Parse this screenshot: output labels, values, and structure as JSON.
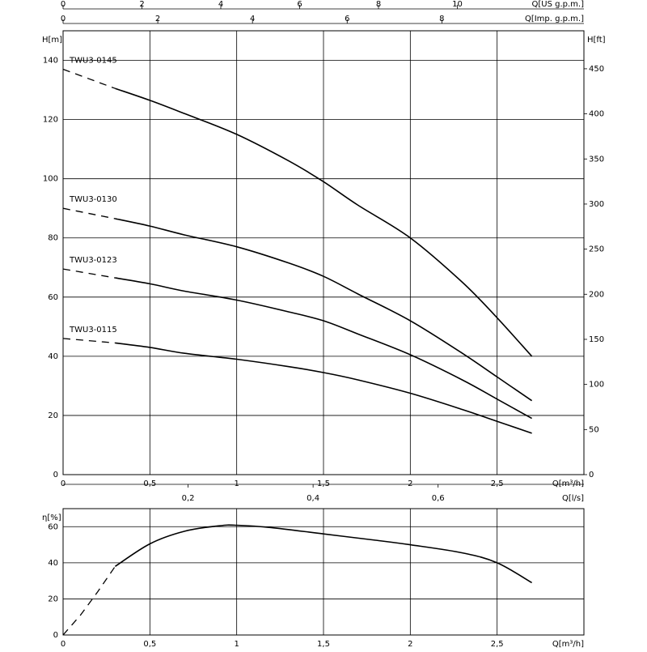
{
  "chart_data": [
    {
      "type": "line",
      "title": "",
      "xlabel": "Q[m³/h]",
      "ylabel_left": "H[m]",
      "ylabel_right": "H[ft]",
      "xlim": [
        0,
        3
      ],
      "ylim": [
        0,
        150
      ],
      "grid": true,
      "x_ticks": [
        "0",
        "0,5",
        "1",
        "1,5",
        "2",
        "2,5"
      ],
      "x_tick_values": [
        0,
        0.5,
        1,
        1.5,
        2,
        2.5
      ],
      "y_ticks_left": [
        "0",
        "20",
        "40",
        "60",
        "80",
        "100",
        "120",
        "140"
      ],
      "y_tick_values_left": [
        0,
        20,
        40,
        60,
        80,
        100,
        120,
        140
      ],
      "y_ticks_right": [
        "0",
        "50",
        "100",
        "150",
        "200",
        "250",
        "300",
        "350",
        "400",
        "450"
      ],
      "y_tick_values_right": [
        0,
        50,
        100,
        150,
        200,
        250,
        300,
        350,
        400,
        450
      ],
      "secondary_x_axes": [
        {
          "label": "Q[US g.p.m.]",
          "ticks": [
            "0",
            "2",
            "4",
            "6",
            "8",
            "10"
          ],
          "tick_values": [
            0,
            2,
            4,
            6,
            8,
            10
          ],
          "range": [
            0,
            13.21
          ]
        },
        {
          "label": "Q[Imp. g.p.m.]",
          "ticks": [
            "0",
            "2",
            "4",
            "6",
            "8"
          ],
          "tick_values": [
            0,
            2,
            4,
            6,
            8
          ],
          "range": [
            0,
            11
          ]
        },
        {
          "label": "Q[l/s]",
          "ticks": [
            "0,2",
            "0,4",
            "0,6"
          ],
          "tick_values": [
            0.2,
            0.4,
            0.6
          ],
          "range": [
            0,
            0.8333
          ]
        }
      ],
      "series": [
        {
          "name": "TWU3-0145",
          "extrapolated": [
            [
              0,
              137
            ],
            [
              0.3,
              130.5
            ]
          ],
          "values": [
            [
              0.3,
              130.5
            ],
            [
              0.5,
              126.5
            ],
            [
              0.7,
              122
            ],
            [
              1.0,
              115
            ],
            [
              1.3,
              106
            ],
            [
              1.5,
              99
            ],
            [
              1.7,
              91
            ],
            [
              2.0,
              80
            ],
            [
              2.3,
              65
            ],
            [
              2.5,
              53
            ],
            [
              2.7,
              40
            ]
          ]
        },
        {
          "name": "TWU3-0130",
          "extrapolated": [
            [
              0,
              90
            ],
            [
              0.3,
              86.5
            ]
          ],
          "values": [
            [
              0.3,
              86.5
            ],
            [
              0.5,
              84
            ],
            [
              0.7,
              81
            ],
            [
              1.0,
              77
            ],
            [
              1.3,
              71.5
            ],
            [
              1.5,
              67
            ],
            [
              1.7,
              61
            ],
            [
              2.0,
              52
            ],
            [
              2.3,
              41
            ],
            [
              2.5,
              33
            ],
            [
              2.7,
              25
            ]
          ]
        },
        {
          "name": "TWU3-0123",
          "extrapolated": [
            [
              0,
              69.5
            ],
            [
              0.3,
              66.5
            ]
          ],
          "values": [
            [
              0.3,
              66.5
            ],
            [
              0.5,
              64.5
            ],
            [
              0.7,
              62
            ],
            [
              1.0,
              59
            ],
            [
              1.3,
              55
            ],
            [
              1.5,
              52
            ],
            [
              1.7,
              47.5
            ],
            [
              2.0,
              40.5
            ],
            [
              2.3,
              32
            ],
            [
              2.5,
              25.5
            ],
            [
              2.7,
              19
            ]
          ]
        },
        {
          "name": "TWU3-0115",
          "extrapolated": [
            [
              0,
              46
            ],
            [
              0.3,
              44.5
            ]
          ],
          "values": [
            [
              0.3,
              44.5
            ],
            [
              0.5,
              43
            ],
            [
              0.7,
              41
            ],
            [
              1.0,
              39
            ],
            [
              1.3,
              36.5
            ],
            [
              1.5,
              34.5
            ],
            [
              1.7,
              32
            ],
            [
              2.0,
              27.5
            ],
            [
              2.3,
              22
            ],
            [
              2.5,
              18
            ],
            [
              2.7,
              14
            ]
          ]
        }
      ]
    },
    {
      "type": "line",
      "title": "",
      "xlabel": "Q[m³/h]",
      "ylabel": "η[%]",
      "xlim": [
        0,
        3
      ],
      "ylim": [
        0,
        70
      ],
      "grid": true,
      "x_ticks": [
        "0",
        "0,5",
        "1",
        "1,5",
        "2",
        "2,5"
      ],
      "x_tick_values": [
        0,
        0.5,
        1,
        1.5,
        2,
        2.5
      ],
      "y_ticks": [
        "0",
        "20",
        "40",
        "60"
      ],
      "y_tick_values": [
        0,
        20,
        40,
        60
      ],
      "series": [
        {
          "name": "",
          "extrapolated": [
            [
              0,
              0
            ],
            [
              0.1,
              11
            ],
            [
              0.2,
              24
            ],
            [
              0.3,
              38
            ]
          ],
          "values": [
            [
              0.3,
              38
            ],
            [
              0.5,
              50.5
            ],
            [
              0.7,
              57.5
            ],
            [
              0.9,
              60.5
            ],
            [
              1.0,
              60.8
            ],
            [
              1.2,
              59.5
            ],
            [
              1.5,
              56
            ],
            [
              1.8,
              52.5
            ],
            [
              2.0,
              50
            ],
            [
              2.3,
              45.5
            ],
            [
              2.5,
              40
            ],
            [
              2.7,
              29
            ]
          ]
        }
      ]
    }
  ]
}
